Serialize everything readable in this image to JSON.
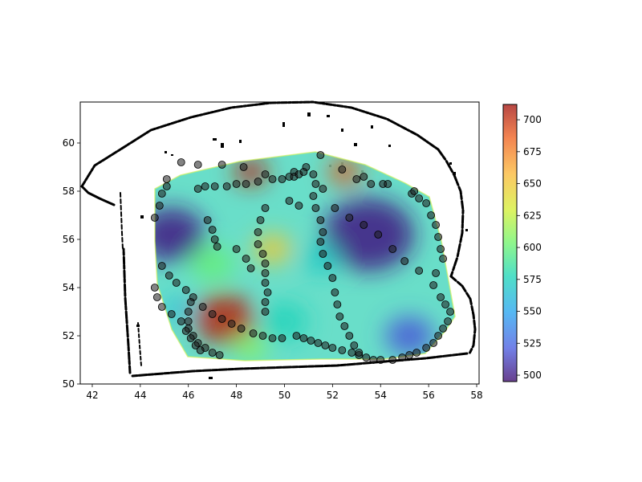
{
  "chart_data": {
    "type": "heatmap",
    "title": "",
    "xlabel": "",
    "ylabel": "",
    "xlim": [
      41.5,
      58.1
    ],
    "ylim": [
      50,
      61.7
    ],
    "x_ticks": [
      42,
      44,
      46,
      48,
      50,
      52,
      54,
      56,
      58
    ],
    "y_ticks": [
      50,
      52,
      54,
      56,
      58,
      60
    ],
    "colorbar": {
      "min": 495,
      "max": 712,
      "ticks": [
        500,
        525,
        550,
        575,
        600,
        625,
        650,
        675,
        700
      ],
      "colormap": [
        "#3e0a6e",
        "#4a5ce0",
        "#27a4f0",
        "#1ed6b8",
        "#6ff46c",
        "#d4ef35",
        "#fbb838",
        "#f06220",
        "#a3130f"
      ]
    },
    "heat_blobs": [
      {
        "x": 45.3,
        "y": 56.2,
        "value": 500,
        "r": 1.4
      },
      {
        "x": 47.5,
        "y": 52.7,
        "value": 705,
        "r": 1.3
      },
      {
        "x": 48.6,
        "y": 58.8,
        "value": 705,
        "r": 0.7
      },
      {
        "x": 53.5,
        "y": 56.2,
        "value": 500,
        "r": 1.9
      },
      {
        "x": 52.5,
        "y": 58.8,
        "value": 690,
        "r": 0.7
      },
      {
        "x": 55.2,
        "y": 52.0,
        "value": 520,
        "r": 1.0
      },
      {
        "x": 49.5,
        "y": 55.6,
        "value": 650,
        "r": 0.8
      },
      {
        "x": 47.0,
        "y": 55.0,
        "value": 600,
        "r": 0.9
      },
      {
        "x": 50.0,
        "y": 52.6,
        "value": 575,
        "r": 1.0
      },
      {
        "x": 51.5,
        "y": 55.2,
        "value": 570,
        "r": 0.8
      },
      {
        "x": 48.6,
        "y": 51.5,
        "value": 610,
        "r": 0.7
      },
      {
        "x": 45.6,
        "y": 53.1,
        "value": 560,
        "r": 0.6
      }
    ],
    "points": [
      [
        45.7,
        59.2
      ],
      [
        46.4,
        59.1
      ],
      [
        47.4,
        59.1
      ],
      [
        48.3,
        59.0
      ],
      [
        49.2,
        58.7
      ],
      [
        50.4,
        58.8
      ],
      [
        50.9,
        59.0
      ],
      [
        51.5,
        59.5
      ],
      [
        52.4,
        58.9
      ],
      [
        53.3,
        58.6
      ],
      [
        54.1,
        58.3
      ],
      [
        55.3,
        57.9
      ],
      [
        45.1,
        58.5
      ],
      [
        45.1,
        58.2
      ],
      [
        44.9,
        57.9
      ],
      [
        44.8,
        57.4
      ],
      [
        44.6,
        56.9
      ],
      [
        46.4,
        58.1
      ],
      [
        46.7,
        58.2
      ],
      [
        47.1,
        58.2
      ],
      [
        47.6,
        58.2
      ],
      [
        48.0,
        58.3
      ],
      [
        48.4,
        58.3
      ],
      [
        48.9,
        58.4
      ],
      [
        49.5,
        58.5
      ],
      [
        49.9,
        58.5
      ],
      [
        50.2,
        58.6
      ],
      [
        50.4,
        58.6
      ],
      [
        50.6,
        58.7
      ],
      [
        50.8,
        58.8
      ],
      [
        51.2,
        58.7
      ],
      [
        51.3,
        58.3
      ],
      [
        51.6,
        58.1
      ],
      [
        53.0,
        58.5
      ],
      [
        53.6,
        58.3
      ],
      [
        54.3,
        58.3
      ],
      [
        55.4,
        58.0
      ],
      [
        55.6,
        57.7
      ],
      [
        55.9,
        57.5
      ],
      [
        56.1,
        57.0
      ],
      [
        56.3,
        56.6
      ],
      [
        56.4,
        56.1
      ],
      [
        56.5,
        55.6
      ],
      [
        56.6,
        55.2
      ],
      [
        56.3,
        54.6
      ],
      [
        56.2,
        54.1
      ],
      [
        56.5,
        53.6
      ],
      [
        56.7,
        53.3
      ],
      [
        56.9,
        53.0
      ],
      [
        56.8,
        52.6
      ],
      [
        56.6,
        52.3
      ],
      [
        56.4,
        52.0
      ],
      [
        56.2,
        51.7
      ],
      [
        55.9,
        51.5
      ],
      [
        55.5,
        51.3
      ],
      [
        55.2,
        51.2
      ],
      [
        54.9,
        51.1
      ],
      [
        54.5,
        51.0
      ],
      [
        54.0,
        51.0
      ],
      [
        53.7,
        51.0
      ],
      [
        53.4,
        51.1
      ],
      [
        53.1,
        51.2
      ],
      [
        52.8,
        51.3
      ],
      [
        52.4,
        51.4
      ],
      [
        52.0,
        51.5
      ],
      [
        51.7,
        51.6
      ],
      [
        51.4,
        51.7
      ],
      [
        51.1,
        51.8
      ],
      [
        50.8,
        51.9
      ],
      [
        50.5,
        52.0
      ],
      [
        49.9,
        51.9
      ],
      [
        49.5,
        51.9
      ],
      [
        49.1,
        52.0
      ],
      [
        48.7,
        52.1
      ],
      [
        48.2,
        52.3
      ],
      [
        47.8,
        52.5
      ],
      [
        47.4,
        52.7
      ],
      [
        47.0,
        52.9
      ],
      [
        46.6,
        53.2
      ],
      [
        46.2,
        53.6
      ],
      [
        45.9,
        53.9
      ],
      [
        45.5,
        54.2
      ],
      [
        45.2,
        54.5
      ],
      [
        44.9,
        54.9
      ],
      [
        44.6,
        54.0
      ],
      [
        44.7,
        53.6
      ],
      [
        44.9,
        53.2
      ],
      [
        45.3,
        52.9
      ],
      [
        45.7,
        52.6
      ],
      [
        46.0,
        52.3
      ],
      [
        46.2,
        52.0
      ],
      [
        46.4,
        51.7
      ],
      [
        46.7,
        51.5
      ],
      [
        47.0,
        51.3
      ],
      [
        47.3,
        51.2
      ],
      [
        46.1,
        53.4
      ],
      [
        46.0,
        53.0
      ],
      [
        46.0,
        52.6
      ],
      [
        45.9,
        52.2
      ],
      [
        46.1,
        51.9
      ],
      [
        46.3,
        51.6
      ],
      [
        46.5,
        51.4
      ],
      [
        49.2,
        57.3
      ],
      [
        49.0,
        56.8
      ],
      [
        48.9,
        56.3
      ],
      [
        48.9,
        55.8
      ],
      [
        49.1,
        55.4
      ],
      [
        49.2,
        55.0
      ],
      [
        49.2,
        54.6
      ],
      [
        49.2,
        54.2
      ],
      [
        49.3,
        53.8
      ],
      [
        49.2,
        53.4
      ],
      [
        49.2,
        53.0
      ],
      [
        51.2,
        57.8
      ],
      [
        51.3,
        57.3
      ],
      [
        51.5,
        56.8
      ],
      [
        51.6,
        56.3
      ],
      [
        51.5,
        55.9
      ],
      [
        51.6,
        55.4
      ],
      [
        51.8,
        54.9
      ],
      [
        52.0,
        54.4
      ],
      [
        52.1,
        53.8
      ],
      [
        52.2,
        53.3
      ],
      [
        52.3,
        52.8
      ],
      [
        52.5,
        52.4
      ],
      [
        52.7,
        52.0
      ],
      [
        52.9,
        51.6
      ],
      [
        53.1,
        51.3
      ],
      [
        46.8,
        56.8
      ],
      [
        47.0,
        56.4
      ],
      [
        47.1,
        56.0
      ],
      [
        47.2,
        55.7
      ],
      [
        48.0,
        55.6
      ],
      [
        48.4,
        55.2
      ],
      [
        48.6,
        54.8
      ],
      [
        50.2,
        57.6
      ],
      [
        50.6,
        57.4
      ],
      [
        52.1,
        57.3
      ],
      [
        52.7,
        56.9
      ],
      [
        53.3,
        56.6
      ],
      [
        53.9,
        56.2
      ],
      [
        54.5,
        55.6
      ],
      [
        55.0,
        55.1
      ],
      [
        55.6,
        54.7
      ]
    ]
  }
}
